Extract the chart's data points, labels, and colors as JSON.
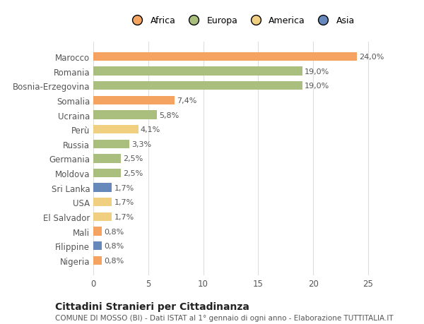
{
  "categories": [
    "Nigeria",
    "Filippine",
    "Mali",
    "El Salvador",
    "USA",
    "Sri Lanka",
    "Moldova",
    "Germania",
    "Russia",
    "Perù",
    "Ucraina",
    "Somalia",
    "Bosnia-Erzegovina",
    "Romania",
    "Marocco"
  ],
  "values": [
    0.8,
    0.8,
    0.8,
    1.7,
    1.7,
    1.7,
    2.5,
    2.5,
    3.3,
    4.1,
    5.8,
    7.4,
    19.0,
    19.0,
    24.0
  ],
  "bar_colors": [
    "#F4A460",
    "#6688BB",
    "#F4A460",
    "#F0D080",
    "#F0D080",
    "#6688BB",
    "#AABF7E",
    "#AABF7E",
    "#AABF7E",
    "#F0D080",
    "#AABF7E",
    "#F4A460",
    "#AABF7E",
    "#AABF7E",
    "#F4A460"
  ],
  "labels": [
    "0,8%",
    "0,8%",
    "0,8%",
    "1,7%",
    "1,7%",
    "1,7%",
    "2,5%",
    "2,5%",
    "3,3%",
    "4,1%",
    "5,8%",
    "7,4%",
    "19,0%",
    "19,0%",
    "24,0%"
  ],
  "title": "Cittadini Stranieri per Cittadinanza",
  "subtitle": "COMUNE DI MOSSO (BI) - Dati ISTAT al 1° gennaio di ogni anno - Elaborazione TUTTITALIA.IT",
  "xlim": [
    0,
    27
  ],
  "xticks": [
    0,
    5,
    10,
    15,
    20,
    25
  ],
  "legend_order": [
    "Africa",
    "Europa",
    "America",
    "Asia"
  ],
  "legend_colors": [
    "#F4A460",
    "#AABF7E",
    "#F0D080",
    "#6688BB"
  ],
  "background_color": "#FFFFFF",
  "grid_color": "#DDDDDD"
}
